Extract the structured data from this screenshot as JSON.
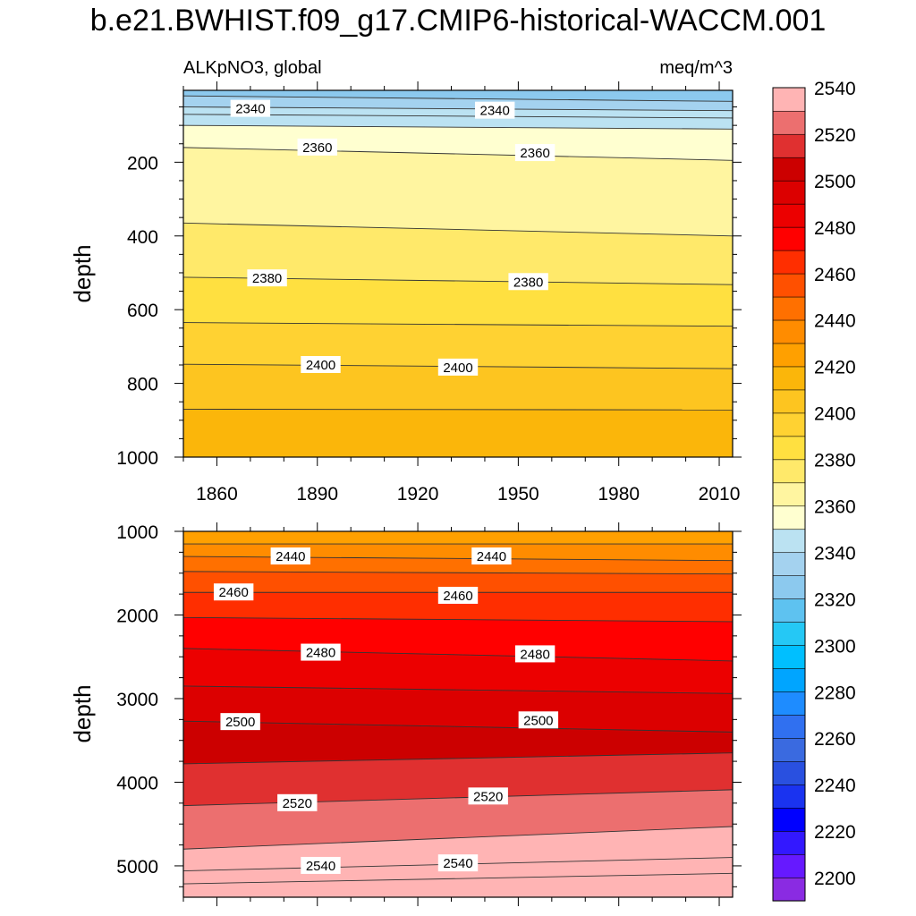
{
  "title": "b.e21.BWHIST.f09_g17.CMIP6-historical-WACCM.001",
  "chart_data": [
    {
      "type": "heatmap",
      "panel": "upper",
      "left_string": "ALKpNO3, global",
      "right_string": "meq/m^3",
      "xlabel": "",
      "ylabel": "depth",
      "xlim": [
        1850,
        2014
      ],
      "ylim": [
        1000,
        5
      ],
      "x_ticks": [
        1860,
        1890,
        1920,
        1950,
        1980,
        2010
      ],
      "y_ticks": [
        200,
        400,
        600,
        800,
        1000
      ],
      "contours": [
        {
          "level": 2330,
          "depth_start": 20,
          "depth_end": 35
        },
        {
          "level": 2335,
          "depth_start": 50,
          "depth_end": 60
        },
        {
          "level": 2340,
          "depth_start": 70,
          "depth_end": 80
        },
        {
          "level": 2350,
          "depth_start": 100,
          "depth_end": 110
        },
        {
          "level": 2360,
          "depth_start": 160,
          "depth_end": 195
        },
        {
          "level": 2370,
          "depth_start": 365,
          "depth_end": 400
        },
        {
          "level": 2380,
          "depth_start": 512,
          "depth_end": 532
        },
        {
          "level": 2390,
          "depth_start": 635,
          "depth_end": 645
        },
        {
          "level": 2400,
          "depth_start": 748,
          "depth_end": 760
        },
        {
          "level": 2410,
          "depth_start": 870,
          "depth_end": 872
        }
      ],
      "contour_labels": [
        {
          "text": "2340",
          "x": 1870,
          "depth": 55
        },
        {
          "text": "2340",
          "x": 1943,
          "depth": 60
        },
        {
          "text": "2360",
          "x": 1890,
          "depth": 160
        },
        {
          "text": "2360",
          "x": 1955,
          "depth": 175
        },
        {
          "text": "2380",
          "x": 1875,
          "depth": 515
        },
        {
          "text": "2380",
          "x": 1953,
          "depth": 525
        },
        {
          "text": "2400",
          "x": 1891,
          "depth": 750
        },
        {
          "text": "2400",
          "x": 1932,
          "depth": 757
        }
      ]
    },
    {
      "type": "heatmap",
      "panel": "lower",
      "xlabel": "",
      "ylabel": "depth",
      "xlim": [
        1850,
        2014
      ],
      "ylim": [
        5375,
        1000
      ],
      "x_ticks": [
        1860,
        1890,
        1920,
        1950,
        1980,
        2010
      ],
      "y_ticks": [
        1000,
        2000,
        3000,
        4000,
        5000
      ],
      "contours": [
        {
          "level": 2430,
          "depth_start": 1150,
          "depth_end": 1150
        },
        {
          "level": 2440,
          "depth_start": 1300,
          "depth_end": 1350
        },
        {
          "level": 2450,
          "depth_start": 1480,
          "depth_end": 1510
        },
        {
          "level": 2460,
          "depth_start": 1730,
          "depth_end": 1730
        },
        {
          "level": 2470,
          "depth_start": 2030,
          "depth_end": 2080
        },
        {
          "level": 2480,
          "depth_start": 2400,
          "depth_end": 2550
        },
        {
          "level": 2490,
          "depth_start": 2850,
          "depth_end": 2940
        },
        {
          "level": 2500,
          "depth_start": 3270,
          "depth_end": 3400
        },
        {
          "level": 2510,
          "depth_start": 3780,
          "depth_end": 3650
        },
        {
          "level": 2520,
          "depth_start": 4280,
          "depth_end": 4090
        },
        {
          "level": 2530,
          "depth_start": 4800,
          "depth_end": 4530
        },
        {
          "level": 2540,
          "depth_start": 5060,
          "depth_end": 4900
        },
        {
          "level": 2550,
          "depth_start": 5215,
          "depth_end": 5090
        }
      ],
      "contour_labels": [
        {
          "text": "2440",
          "x": 1882,
          "depth": 1300
        },
        {
          "text": "2440",
          "x": 1942,
          "depth": 1300
        },
        {
          "text": "2460",
          "x": 1865,
          "depth": 1730
        },
        {
          "text": "2460",
          "x": 1932,
          "depth": 1770
        },
        {
          "text": "2480",
          "x": 1891,
          "depth": 2450
        },
        {
          "text": "2480",
          "x": 1955,
          "depth": 2470
        },
        {
          "text": "2500",
          "x": 1867,
          "depth": 3280
        },
        {
          "text": "2500",
          "x": 1956,
          "depth": 3260
        },
        {
          "text": "2520",
          "x": 1884,
          "depth": 4250
        },
        {
          "text": "2520",
          "x": 1941,
          "depth": 4170
        },
        {
          "text": "2540",
          "x": 1891,
          "depth": 5000
        },
        {
          "text": "2540",
          "x": 1932,
          "depth": 4970
        }
      ]
    }
  ],
  "colorbar": {
    "min": 2190,
    "step": 10,
    "labels": [
      2200,
      2220,
      2240,
      2260,
      2280,
      2300,
      2320,
      2340,
      2360,
      2380,
      2400,
      2420,
      2440,
      2460,
      2480,
      2500,
      2520,
      2540
    ],
    "colors": [
      "#8a2be2",
      "#6619ff",
      "#3318ff",
      "#0000ff",
      "#1a33f0",
      "#2950e0",
      "#3a6ae0",
      "#3070f0",
      "#1e8cff",
      "#00a5ff",
      "#00bfff",
      "#25c8f5",
      "#5ec2f0",
      "#8cc9ee",
      "#a4d2ef",
      "#bbe2f2",
      "#ffffd0",
      "#fff5a0",
      "#ffe96a",
      "#ffe040",
      "#ffd232",
      "#fdc520",
      "#fbb60a",
      "#ffa000",
      "#ff8c00",
      "#ff7000",
      "#ff5000",
      "#ff2e00",
      "#ff0000",
      "#ec0000",
      "#dc0000",
      "#cc0000",
      "#e03030",
      "#ec6f6f",
      "#ffb4b4"
    ]
  }
}
